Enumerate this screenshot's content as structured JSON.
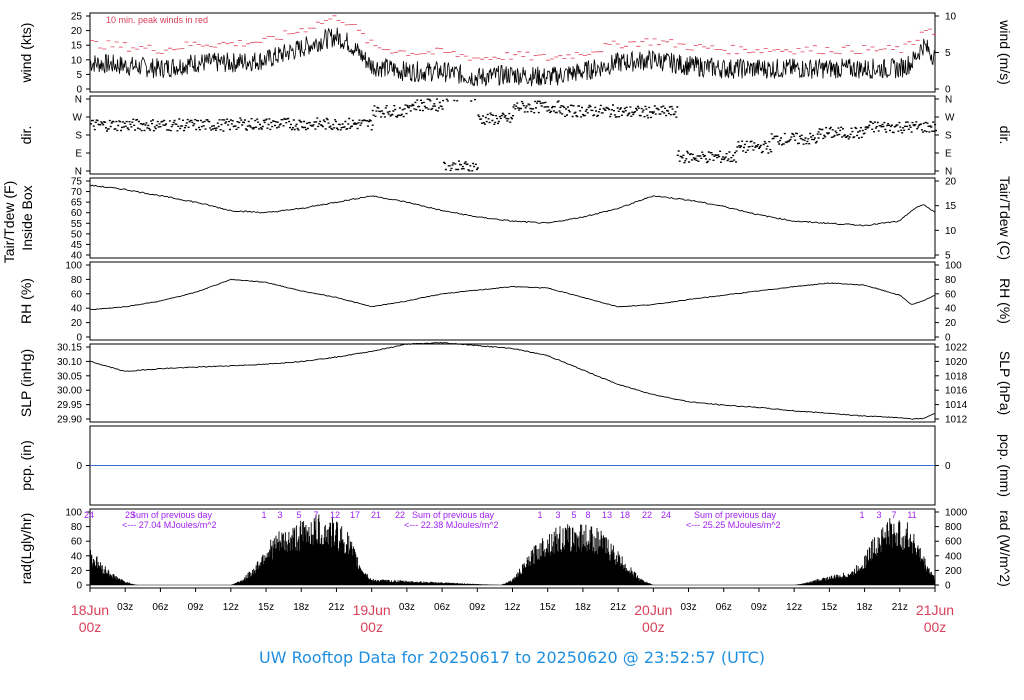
{
  "title": "UW Rooftop Data for 20250617  to  20250620 @ 23:52:57  (UTC)",
  "colors": {
    "red_label": "#d8405a",
    "blue": "#1f8fe0",
    "purple": "#a020f0",
    "black": "#000000",
    "gust": "#e0405a",
    "precip_line": "#3a6fd0"
  },
  "hour_ticks": [
    "03z",
    "06z",
    "09z",
    "12z",
    "15z",
    "18z",
    "21z",
    "03z",
    "06z",
    "09z",
    "12z",
    "15z",
    "18z",
    "21z",
    "03z",
    "06z",
    "09z",
    "12z",
    "15z",
    "18z",
    "21z"
  ],
  "day_labels": [
    {
      "date": "18Jun",
      "time": "00z"
    },
    {
      "date": "19Jun",
      "time": "00z"
    },
    {
      "date": "20Jun",
      "time": "00z"
    },
    {
      "date": "21Jun",
      "time": "00z"
    }
  ],
  "panels": [
    {
      "key": "wind",
      "left_label": "wind (kts)",
      "right_label": "wind (m/s)",
      "left_ticks": [
        "0",
        "5",
        "10",
        "15",
        "20",
        "25"
      ],
      "right_ticks": [
        "0",
        "5",
        "10"
      ],
      "note": "10 min. peak winds in red"
    },
    {
      "key": "dir",
      "left_label": "dir.",
      "right_label": "dir.",
      "left_ticks": [
        "N",
        "E",
        "S",
        "W",
        "N"
      ],
      "right_ticks": [
        "N",
        "E",
        "S",
        "W",
        "N"
      ]
    },
    {
      "key": "temp",
      "left_label": "Tair/Tdew (F)",
      "left_label2": "Inside Box",
      "right_label": "Tair/Tdew (C)",
      "left_ticks": [
        "40",
        "45",
        "50",
        "55",
        "60",
        "65",
        "70",
        "75"
      ],
      "right_ticks": [
        "5",
        "10",
        "15",
        "20"
      ]
    },
    {
      "key": "rh",
      "left_label": "RH (%)",
      "right_label": "RH (%)",
      "left_ticks": [
        "0",
        "20",
        "40",
        "60",
        "80",
        "100"
      ],
      "right_ticks": [
        "0",
        "20",
        "40",
        "60",
        "80",
        "100"
      ]
    },
    {
      "key": "slp",
      "left_label": "SLP (inHg)",
      "right_label": "SLP (hPa)",
      "left_ticks": [
        "29.90",
        "29.95",
        "30.00",
        "30.05",
        "30.10",
        "30.15"
      ],
      "right_ticks": [
        "1012",
        "1014",
        "1016",
        "1018",
        "1020",
        "1022"
      ]
    },
    {
      "key": "pcp",
      "left_label": "pcp. (in)",
      "right_label": "pcp. (mm)",
      "left_ticks": [
        "0"
      ],
      "right_ticks": [
        "0"
      ]
    },
    {
      "key": "rad",
      "left_label": "rad(Lgly/hr)",
      "right_label": "rad (W/m^2)",
      "left_ticks": [
        "0",
        "20",
        "40",
        "60",
        "80",
        "100"
      ],
      "right_ticks": [
        "0",
        "200",
        "400",
        "600",
        "800",
        "1000"
      ]
    }
  ],
  "rad_annotations": [
    {
      "sum_label": "Sum of previous day",
      "value_label": "<--- 27.04 MJoules/m^2"
    },
    {
      "sum_label": "Sum of previous day",
      "value_label": "<--- 22.38 MJoules/m^2"
    },
    {
      "sum_label": "Sum of previous day",
      "value_label": "<--- 25.25 MJoules/m^2"
    }
  ],
  "rad_hour_marks": [
    "24",
    "23",
    "1",
    "3",
    "5",
    "7",
    "12",
    "17",
    "21",
    "22",
    "1",
    "3",
    "5",
    "8",
    "13",
    "18",
    "22",
    "24",
    "1",
    "3",
    "7",
    "11"
  ],
  "chart_data": {
    "type": "line",
    "x_unit": "hours since 18Jun 00z",
    "x_range": [
      0,
      72
    ],
    "series": [
      {
        "name": "wind",
        "unit": "kts",
        "ylim": [
          0,
          27
        ],
        "x": [
          0,
          3,
          6,
          9,
          12,
          15,
          18,
          20,
          21,
          22,
          24,
          27,
          30,
          33,
          36,
          39,
          42,
          45,
          48,
          51,
          54,
          57,
          60,
          63,
          66,
          69,
          70,
          71,
          72
        ],
        "y": [
          9,
          8,
          7,
          9,
          9,
          10,
          14,
          17,
          18,
          16,
          8,
          6,
          6,
          4,
          5,
          4,
          6,
          9,
          10,
          8,
          7,
          7,
          7,
          7,
          7,
          7,
          9,
          15,
          11
        ]
      },
      {
        "name": "temperature",
        "unit": "F",
        "ylim": [
          38,
          76
        ],
        "x": [
          0,
          3,
          6,
          9,
          12,
          15,
          18,
          21,
          24,
          27,
          30,
          33,
          36,
          39,
          42,
          45,
          48,
          51,
          54,
          57,
          60,
          63,
          66,
          69,
          70,
          71,
          72
        ],
        "y": [
          73,
          71,
          68,
          65,
          61,
          60,
          62,
          65,
          68,
          65,
          61,
          58,
          56,
          55,
          58,
          62,
          68,
          66,
          63,
          59,
          56,
          55,
          54,
          56,
          61,
          64,
          60
        ]
      },
      {
        "name": "RH",
        "unit": "%",
        "ylim": [
          0,
          100
        ],
        "x": [
          0,
          3,
          6,
          9,
          12,
          15,
          18,
          21,
          24,
          27,
          30,
          33,
          36,
          39,
          42,
          45,
          48,
          51,
          54,
          57,
          60,
          63,
          66,
          69,
          70,
          71,
          72
        ],
        "y": [
          38,
          42,
          50,
          62,
          80,
          76,
          64,
          55,
          42,
          50,
          60,
          65,
          70,
          68,
          55,
          42,
          45,
          52,
          58,
          64,
          70,
          75,
          72,
          58,
          45,
          50,
          58
        ]
      },
      {
        "name": "SLP",
        "unit": "inHg",
        "ylim": [
          29.885,
          30.175
        ],
        "x": [
          0,
          3,
          6,
          9,
          12,
          15,
          18,
          21,
          24,
          27,
          30,
          33,
          36,
          39,
          42,
          45,
          48,
          51,
          54,
          57,
          60,
          63,
          66,
          69,
          70,
          71,
          72
        ],
        "y": [
          30.1,
          30.065,
          30.075,
          30.08,
          30.085,
          30.09,
          30.1,
          30.115,
          30.135,
          30.16,
          30.165,
          30.155,
          30.145,
          30.12,
          30.07,
          30.02,
          29.985,
          29.96,
          29.948,
          29.94,
          29.928,
          29.92,
          29.91,
          29.905,
          29.9,
          29.902,
          29.92
        ]
      },
      {
        "name": "precipitation",
        "unit": "in",
        "ylim": [
          0,
          1
        ],
        "x": [
          0,
          72
        ],
        "y": [
          0,
          0
        ]
      },
      {
        "name": "solar radiation",
        "unit": "Lgly/hr",
        "ylim": [
          0,
          100
        ],
        "x": [
          0,
          1,
          2,
          3,
          4,
          12,
          13,
          14,
          15,
          16,
          17,
          18,
          19,
          20,
          21,
          22,
          23,
          24,
          35,
          36,
          37,
          38,
          39,
          40,
          41,
          42,
          43,
          44,
          45,
          46,
          47,
          48,
          60,
          61,
          62,
          63,
          64,
          65,
          66,
          67,
          68,
          69,
          70,
          71,
          72
        ],
        "y": [
          50,
          30,
          15,
          5,
          0,
          0,
          8,
          25,
          55,
          70,
          75,
          85,
          95,
          90,
          88,
          70,
          30,
          8,
          0,
          8,
          30,
          55,
          72,
          78,
          80,
          82,
          78,
          65,
          45,
          25,
          8,
          0,
          0,
          3,
          8,
          12,
          15,
          20,
          40,
          70,
          90,
          85,
          80,
          40,
          10
        ]
      }
    ]
  }
}
